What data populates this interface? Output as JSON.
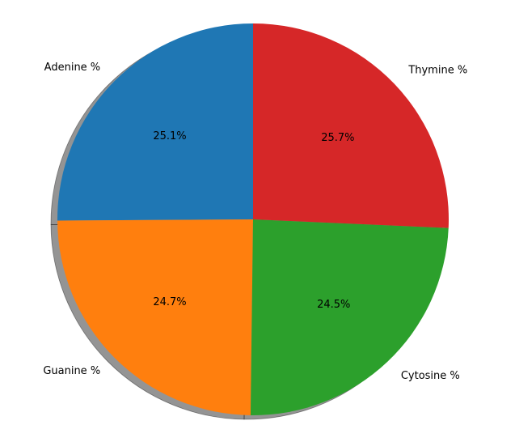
{
  "chart_data": {
    "type": "pie",
    "title": "",
    "start_angle_deg": 90,
    "direction": "counterclockwise",
    "shadow": true,
    "slices": [
      {
        "label": "Adenine %",
        "value": 25.1,
        "pct_text": "25.1%",
        "color": "#1f77b4"
      },
      {
        "label": "Guanine %",
        "value": 24.7,
        "pct_text": "24.7%",
        "color": "#ff7f0e"
      },
      {
        "label": "Cytosine %",
        "value": 24.5,
        "pct_text": "24.5%",
        "color": "#2ca02c"
      },
      {
        "label": "Thymine %",
        "value": 25.7,
        "pct_text": "25.7%",
        "color": "#d62728"
      }
    ]
  }
}
